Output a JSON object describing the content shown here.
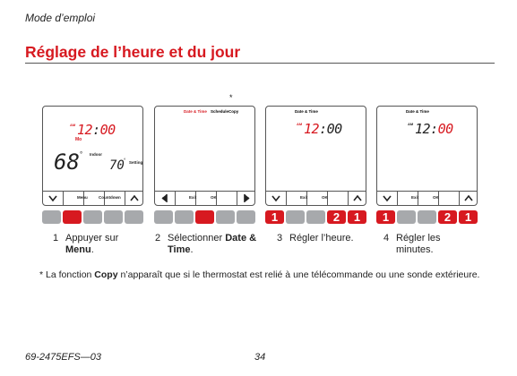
{
  "header": {
    "section": "Mode d’emploi",
    "title": "Réglage de l’heure et du jour"
  },
  "asterisk": "*",
  "screens": [
    {
      "hours": "12",
      "colon": ":",
      "minutes": "00",
      "hours_color": "#d71920",
      "minutes_color": "#d71920",
      "am": "AM",
      "day": "Mo",
      "temp": "68",
      "temp_unit": "°",
      "temp_label": "Indoor",
      "set": "70",
      "set_unit": "°",
      "set_label": "Setting",
      "arrows": [
        "down",
        "up"
      ],
      "soft_keys": [
        "Menu",
        "Countdown"
      ],
      "keys": [
        {
          "color": "#a7a9ac"
        },
        {
          "color": "#d71920"
        },
        {
          "color": "#a7a9ac"
        },
        {
          "color": "#a7a9ac"
        },
        {
          "color": "#a7a9ac"
        }
      ]
    },
    {
      "tabs": [
        "Date & Time",
        "Schedule",
        "Copy"
      ],
      "tab_colors": [
        "#d71920",
        "#000000",
        "#000000"
      ],
      "arrows": [
        "left",
        "right"
      ],
      "soft_keys": [
        "Exit",
        "OK"
      ],
      "keys": [
        {
          "color": "#a7a9ac"
        },
        {
          "color": "#a7a9ac"
        },
        {
          "color": "#d71920"
        },
        {
          "color": "#a7a9ac"
        },
        {
          "color": "#a7a9ac"
        }
      ]
    },
    {
      "tabs": [
        "Date & Time"
      ],
      "tab_colors": [
        "#000000"
      ],
      "hours": "12",
      "colon": ":",
      "minutes": "00",
      "hours_color": "#d71920",
      "minutes_color": "#222222",
      "am": "AM",
      "arrows": [
        "down",
        "up"
      ],
      "soft_keys": [
        "Exit",
        "OK"
      ],
      "keys": [
        {
          "color": "#d71920",
          "label": "1"
        },
        {
          "color": "#a7a9ac"
        },
        {
          "color": "#a7a9ac"
        },
        {
          "color": "#d71920",
          "label": "2"
        },
        {
          "color": "#d71920",
          "label": "1"
        }
      ]
    },
    {
      "tabs": [
        "Date & Time"
      ],
      "tab_colors": [
        "#000000"
      ],
      "hours": "12",
      "colon": ":",
      "minutes": "00",
      "hours_color": "#222222",
      "minutes_color": "#d71920",
      "am": "AM",
      "arrows": [
        "down",
        "up"
      ],
      "soft_keys": [
        "Exit",
        "OK"
      ],
      "keys": [
        {
          "color": "#d71920",
          "label": "1"
        },
        {
          "color": "#a7a9ac"
        },
        {
          "color": "#a7a9ac"
        },
        {
          "color": "#d71920",
          "label": "2"
        },
        {
          "color": "#d71920",
          "label": "1"
        }
      ]
    }
  ],
  "steps": [
    {
      "number": "1",
      "text": "Appuyer sur ",
      "bold": "Menu",
      "end": "."
    },
    {
      "number": "2",
      "text": "Sélectionner ",
      "bold": "Date & Time",
      "end": "."
    },
    {
      "number": "3",
      "text": "Régler l’heure."
    },
    {
      "number": "4",
      "text": "Régler les minutes."
    }
  ],
  "footnote": {
    "text": "* La fonction ",
    "bold": "Copy",
    "end": " n’apparaît que si le thermostat est relié à une télécommande ou une sonde extérieure."
  },
  "footer": {
    "doc_id": "69-2475EFS—03",
    "page": "34"
  }
}
